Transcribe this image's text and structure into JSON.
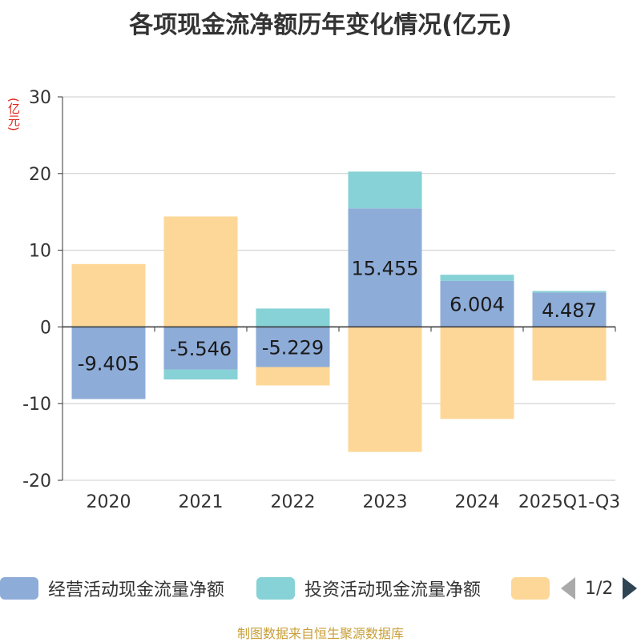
{
  "title": "各项现金流净额历年变化情况(亿元)",
  "unit_label": "(亿元)",
  "source": "制图数据来自恒生聚源数据库",
  "pager": {
    "text": "1/2"
  },
  "colors": {
    "operating": "#8eacd8",
    "investing": "#86d2d6",
    "financing": "#fdd797",
    "axis": "#333333",
    "grid": "#cccccc"
  },
  "chart_data": {
    "type": "bar",
    "stacked": true,
    "categories": [
      "2020",
      "2021",
      "2022",
      "2023",
      "2024",
      "2025Q1-Q3"
    ],
    "series": [
      {
        "name": "经营活动现金流量净额",
        "values": [
          -9.405,
          -5.546,
          -5.229,
          15.455,
          6.004,
          4.487
        ],
        "show_labels": true
      },
      {
        "name": "投资活动现金流量净额",
        "values": [
          0.1,
          -1.3,
          2.4,
          4.8,
          0.8,
          0.2
        ],
        "show_labels": false
      },
      {
        "name": "",
        "values": [
          8.1,
          14.4,
          -2.4,
          -16.3,
          -12.0,
          -7.0
        ],
        "show_labels": false
      }
    ],
    "data_labels": [
      "-9.405",
      "-5.546",
      "-5.229",
      "15.455",
      "6.004",
      "4.487"
    ],
    "ylim": [
      -20,
      30
    ],
    "yticks": [
      -20,
      -10,
      0,
      10,
      20,
      30
    ],
    "grid": true,
    "legend": "bottom"
  }
}
